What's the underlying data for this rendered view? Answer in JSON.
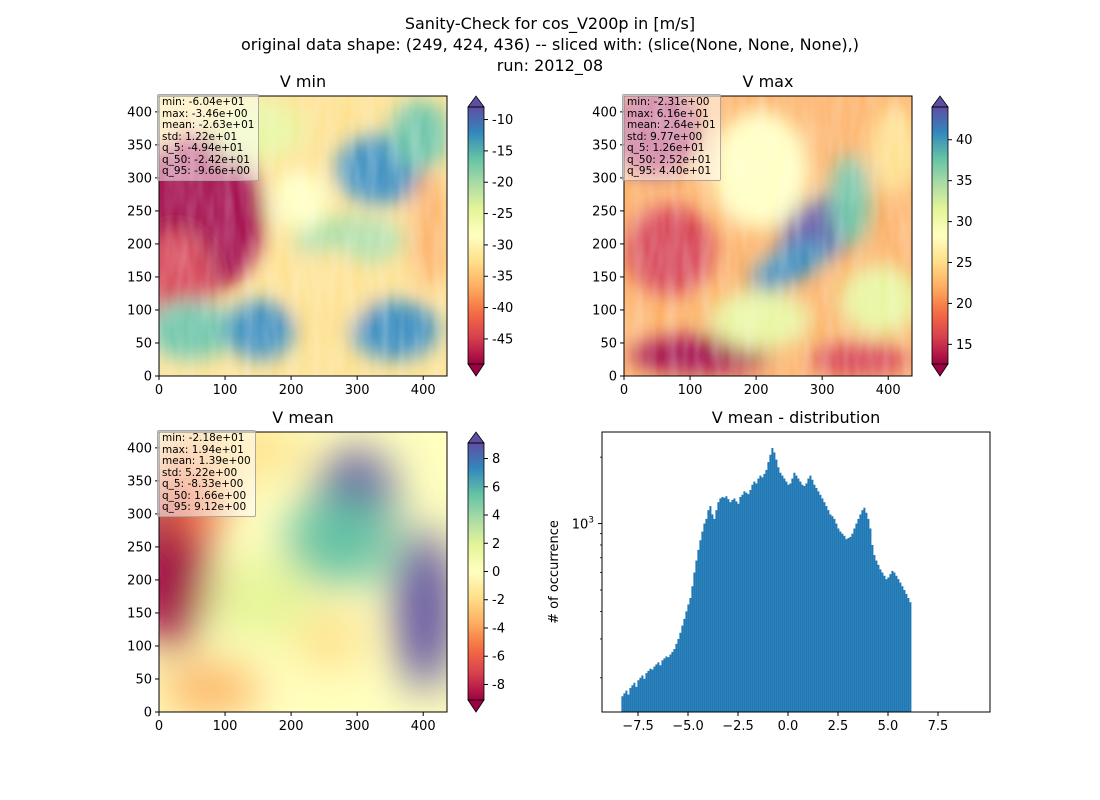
{
  "suptitle": {
    "line1": "Sanity-Check for cos_V200p in [m/s]",
    "line2": "original data shape: (249, 424, 436) -- sliced with: (slice(None, None, None),)",
    "line3": "run: 2012_08"
  },
  "colormap": "Spectral",
  "chart_data": [
    {
      "type": "heatmap",
      "title": "V min",
      "x_ticks": [
        "0",
        "100",
        "200",
        "300",
        "400"
      ],
      "y_ticks": [
        "0",
        "50",
        "100",
        "150",
        "200",
        "250",
        "300",
        "350",
        "400"
      ],
      "xlim": [
        0,
        436
      ],
      "ylim": [
        0,
        424
      ],
      "colorbar": {
        "ticks": [
          "-45",
          "-40",
          "-35",
          "-30",
          "-25",
          "-20",
          "-15",
          "-10"
        ],
        "range": [
          -49,
          -8
        ],
        "extend": "both"
      },
      "stats": [
        "min: -6.04e+01",
        "max: -3.46e+00",
        "mean: -2.63e+01",
        "std: 1.22e+01",
        "q_5: -4.94e+01",
        "q_50: -2.42e+01",
        "q_95: -9.66e+00"
      ]
    },
    {
      "type": "heatmap",
      "title": "V max",
      "x_ticks": [
        "0",
        "100",
        "200",
        "300",
        "400"
      ],
      "y_ticks": [
        "0",
        "50",
        "100",
        "150",
        "200",
        "250",
        "300",
        "350",
        "400"
      ],
      "xlim": [
        0,
        436
      ],
      "ylim": [
        0,
        424
      ],
      "colorbar": {
        "ticks": [
          "15",
          "20",
          "25",
          "30",
          "35",
          "40"
        ],
        "range": [
          12.6,
          44.0
        ],
        "extend": "both"
      },
      "stats": [
        "min: -2.31e+00",
        "max: 6.16e+01",
        "mean: 2.64e+01",
        "std: 9.77e+00",
        "q_5: 1.26e+01",
        "q_50: 2.52e+01",
        "q_95: 4.40e+01"
      ]
    },
    {
      "type": "heatmap",
      "title": "V mean",
      "x_ticks": [
        "0",
        "100",
        "200",
        "300",
        "400"
      ],
      "y_ticks": [
        "0",
        "50",
        "100",
        "150",
        "200",
        "250",
        "300",
        "350",
        "400"
      ],
      "xlim": [
        0,
        436
      ],
      "ylim": [
        0,
        424
      ],
      "colorbar": {
        "ticks": [
          "-8",
          "-6",
          "-4",
          "-2",
          "0",
          "2",
          "4",
          "6",
          "8"
        ],
        "range": [
          -9.1,
          9.1
        ],
        "extend": "both"
      },
      "stats": [
        "min: -2.18e+01",
        "max: 1.94e+01",
        "mean: 1.39e+00",
        "std: 5.22e+00",
        "q_5: -8.33e+00",
        "q_50: 1.66e+00",
        "q_95: 9.12e+00"
      ]
    },
    {
      "type": "bar",
      "title": "V mean - distribution",
      "ylabel": "# of occurrence",
      "y_scale": "log",
      "y_ticks": [
        "10^3"
      ],
      "x_ticks": [
        "-7.5",
        "-5.0",
        "-2.5",
        "0.0",
        "2.5",
        "5.0",
        "7.5"
      ],
      "xlim": [
        -9.3,
        10.1
      ],
      "ylim": [
        140,
        2600
      ],
      "bin_width": 0.1,
      "x_start": -8.33,
      "color": "#1f77b4",
      "values": [
        165,
        170,
        175,
        168,
        180,
        185,
        190,
        182,
        195,
        200,
        205,
        198,
        210,
        215,
        220,
        218,
        225,
        230,
        235,
        228,
        240,
        245,
        250,
        248,
        255,
        262,
        270,
        285,
        300,
        320,
        345,
        370,
        400,
        430,
        460,
        520,
        600,
        680,
        760,
        840,
        920,
        1000,
        1050,
        1150,
        1200,
        1100,
        1050,
        1150,
        1250,
        1300,
        1320,
        1310,
        1330,
        1290,
        1250,
        1280,
        1300,
        1260,
        1230,
        1320,
        1350,
        1400,
        1380,
        1360,
        1420,
        1500,
        1550,
        1520,
        1600,
        1650,
        1620,
        1680,
        1750,
        1900,
        2050,
        2200,
        2100,
        1950,
        1800,
        1700,
        1650,
        1600,
        1550,
        1500,
        1520,
        1600,
        1700,
        1650,
        1600,
        1550,
        1500,
        1480,
        1520,
        1600,
        1650,
        1580,
        1500,
        1450,
        1400,
        1350,
        1300,
        1250,
        1200,
        1150,
        1100,
        1080,
        1050,
        1000,
        950,
        920,
        900,
        880,
        850,
        860,
        870,
        900,
        950,
        1000,
        1050,
        1100,
        1150,
        1180,
        1120,
        1050,
        950,
        800,
        720,
        680,
        650,
        620,
        600,
        580,
        560,
        570,
        590,
        610,
        600,
        580,
        560,
        540,
        520,
        500,
        480,
        460,
        440
      ]
    }
  ]
}
